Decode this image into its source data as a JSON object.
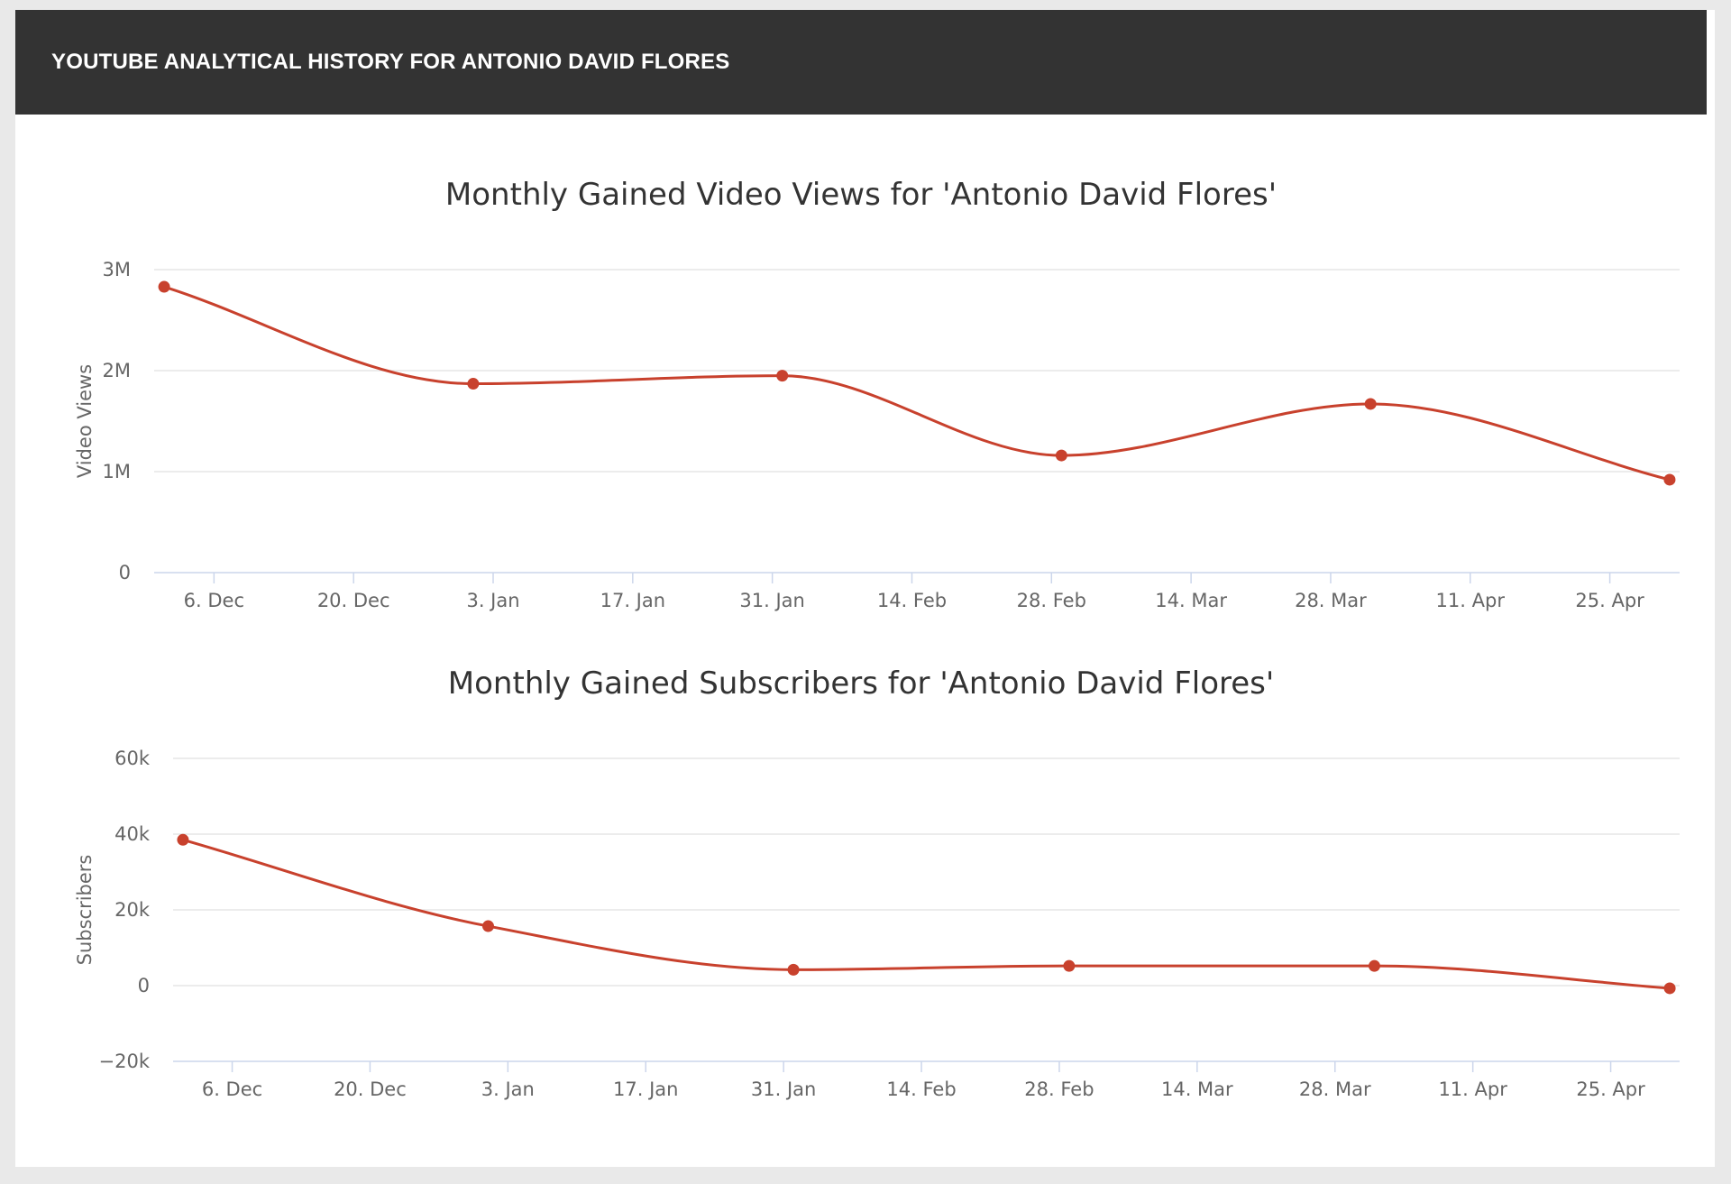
{
  "header": {
    "title": "YOUTUBE ANALYTICAL HISTORY FOR ANTONIO DAVID FLORES"
  },
  "colors": {
    "series": "#c8412d",
    "header_bg": "#333333"
  },
  "chart_data": [
    {
      "type": "line",
      "title": "Monthly Gained Video Views for 'Antonio David Flores'",
      "xlabel": "",
      "ylabel": "Video Views",
      "ylim": [
        0,
        3000000
      ],
      "y_ticks": [
        0,
        1000000,
        2000000,
        3000000
      ],
      "y_tick_labels": [
        "0",
        "1M",
        "2M",
        "3M"
      ],
      "x_range": [
        "2018-11-30",
        "2019-05-02"
      ],
      "x_ticks": [
        "2018-12-06",
        "2018-12-20",
        "2019-01-03",
        "2019-01-17",
        "2019-01-31",
        "2019-02-14",
        "2019-02-28",
        "2019-03-14",
        "2019-03-28",
        "2019-04-11",
        "2019-04-25"
      ],
      "x_tick_labels": [
        "6. Dec",
        "20. Dec",
        "3. Jan",
        "17. Jan",
        "31. Jan",
        "14. Feb",
        "28. Feb",
        "14. Mar",
        "28. Mar",
        "11. Apr",
        "25. Apr"
      ],
      "grid": true,
      "series": [
        {
          "points": [
            {
              "x": "2018-12-01",
              "y": 2830000
            },
            {
              "x": "2019-01-01",
              "y": 1870000
            },
            {
              "x": "2019-02-01",
              "y": 1950000
            },
            {
              "x": "2019-03-01",
              "y": 1160000
            },
            {
              "x": "2019-04-01",
              "y": 1670000
            },
            {
              "x": "2019-05-01",
              "y": 920000
            }
          ]
        }
      ]
    },
    {
      "type": "line",
      "title": "Monthly Gained Subscribers for 'Antonio David Flores'",
      "xlabel": "",
      "ylabel": "Subscribers",
      "ylim": [
        -20000,
        60000
      ],
      "y_ticks": [
        -20000,
        0,
        20000,
        40000,
        60000
      ],
      "y_tick_labels": [
        "−20k",
        "0",
        "20k",
        "40k",
        "60k"
      ],
      "x_range": [
        "2018-11-30",
        "2019-05-02"
      ],
      "x_ticks": [
        "2018-12-06",
        "2018-12-20",
        "2019-01-03",
        "2019-01-17",
        "2019-01-31",
        "2019-02-14",
        "2019-02-28",
        "2019-03-14",
        "2019-03-28",
        "2019-04-11",
        "2019-04-25"
      ],
      "x_tick_labels": [
        "6. Dec",
        "20. Dec",
        "3. Jan",
        "17. Jan",
        "31. Jan",
        "14. Feb",
        "28. Feb",
        "14. Mar",
        "28. Mar",
        "11. Apr",
        "25. Apr"
      ],
      "grid": true,
      "series": [
        {
          "points": [
            {
              "x": "2018-12-01",
              "y": 38500
            },
            {
              "x": "2019-01-01",
              "y": 15700
            },
            {
              "x": "2019-02-01",
              "y": 4200
            },
            {
              "x": "2019-03-01",
              "y": 5200
            },
            {
              "x": "2019-04-01",
              "y": 5200
            },
            {
              "x": "2019-05-01",
              "y": -700
            }
          ]
        }
      ]
    }
  ]
}
